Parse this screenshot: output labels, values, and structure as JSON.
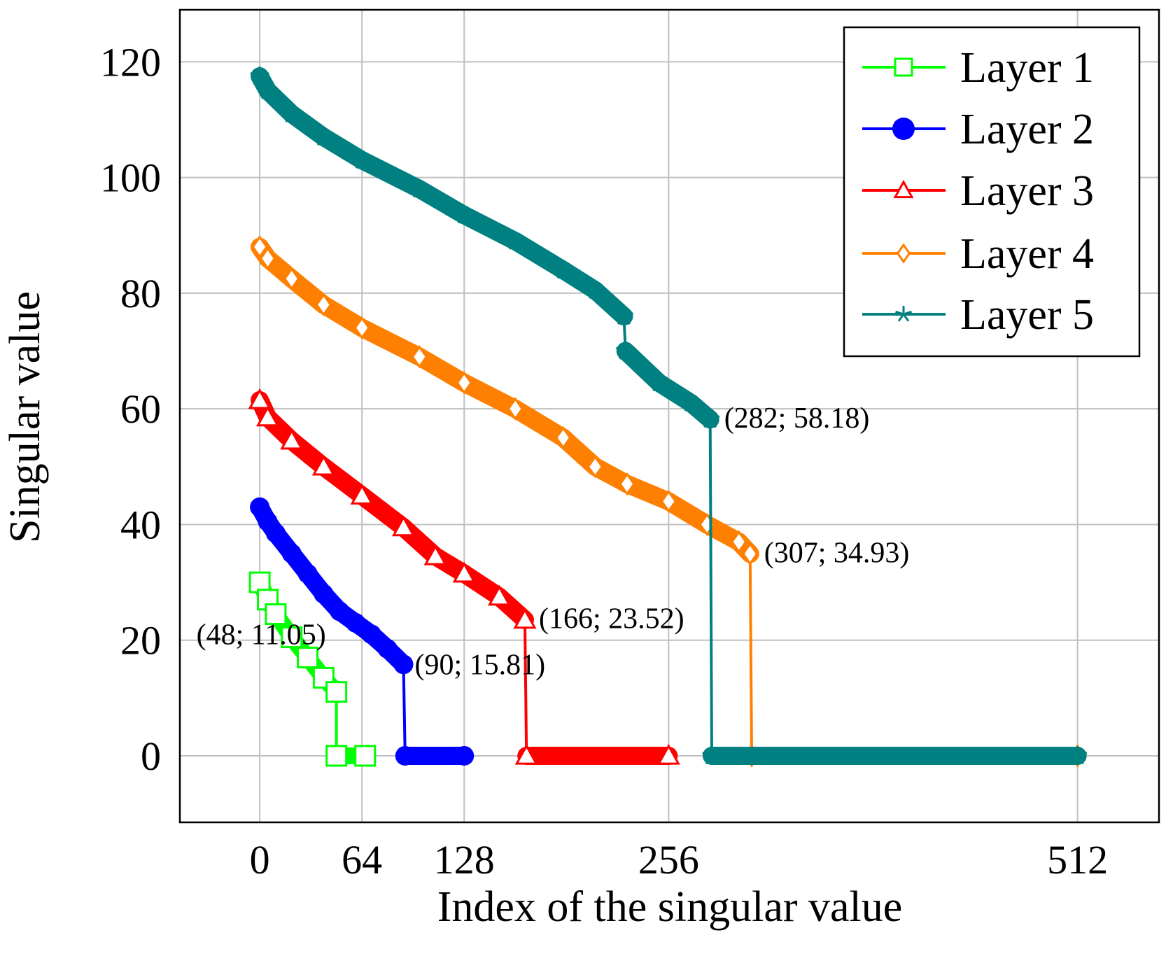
{
  "chart_data": {
    "type": "line",
    "title": "",
    "xlabel": "Index of the singular value",
    "ylabel": "Singular value",
    "xlim": [
      -50,
      563
    ],
    "ylim": [
      -11.5,
      129
    ],
    "xticks": [
      0,
      64,
      128,
      256,
      512
    ],
    "yticks": [
      0,
      20,
      40,
      60,
      80,
      100,
      120
    ],
    "grid": true,
    "legend_position": "top-right",
    "series": [
      {
        "name": "Layer 1",
        "color": "#00ff00",
        "marker": "square-open",
        "points": [
          [
            0,
            30
          ],
          [
            5,
            27
          ],
          [
            10,
            24.5
          ],
          [
            20,
            20.5
          ],
          [
            30,
            17
          ],
          [
            40,
            13.5
          ],
          [
            48,
            11.05
          ],
          [
            48,
            0
          ],
          [
            66,
            0
          ]
        ]
      },
      {
        "name": "Layer 2",
        "color": "#0000ff",
        "marker": "circle-filled",
        "points": [
          [
            0,
            43
          ],
          [
            5,
            40.5
          ],
          [
            10,
            38.5
          ],
          [
            20,
            35
          ],
          [
            30,
            31.5
          ],
          [
            40,
            28
          ],
          [
            50,
            25
          ],
          [
            60,
            23
          ],
          [
            70,
            21
          ],
          [
            80,
            18.5
          ],
          [
            90,
            15.81
          ],
          [
            91,
            0
          ],
          [
            128,
            0
          ]
        ]
      },
      {
        "name": "Layer 3",
        "color": "#ff0000",
        "marker": "triangle-open",
        "points": [
          [
            0,
            61.5
          ],
          [
            5,
            58.5
          ],
          [
            20,
            54.5
          ],
          [
            40,
            50
          ],
          [
            64,
            45
          ],
          [
            90,
            39.5
          ],
          [
            110,
            34.5
          ],
          [
            128,
            31.5
          ],
          [
            150,
            27.5
          ],
          [
            166,
            23.52
          ],
          [
            167,
            0
          ],
          [
            256,
            0
          ]
        ]
      },
      {
        "name": "Layer 4",
        "color": "#ff8000",
        "marker": "diamond-open",
        "points": [
          [
            0,
            88
          ],
          [
            5,
            86
          ],
          [
            20,
            82.5
          ],
          [
            40,
            78
          ],
          [
            64,
            74
          ],
          [
            100,
            69
          ],
          [
            128,
            64.5
          ],
          [
            160,
            60
          ],
          [
            190,
            55
          ],
          [
            210,
            50
          ],
          [
            230,
            47
          ],
          [
            256,
            44
          ],
          [
            280,
            40
          ],
          [
            300,
            37
          ],
          [
            307,
            34.93
          ],
          [
            308,
            0
          ],
          [
            512,
            0
          ]
        ]
      },
      {
        "name": "Layer 5",
        "color": "#008080",
        "marker": "star",
        "points": [
          [
            0,
            117.5
          ],
          [
            5,
            115
          ],
          [
            20,
            111
          ],
          [
            40,
            107
          ],
          [
            64,
            103
          ],
          [
            100,
            98
          ],
          [
            128,
            93.5
          ],
          [
            160,
            89
          ],
          [
            190,
            84
          ],
          [
            210,
            80.5
          ],
          [
            228,
            76
          ],
          [
            229,
            70
          ],
          [
            250,
            64.5
          ],
          [
            270,
            61
          ],
          [
            282,
            58.18
          ],
          [
            283,
            0
          ],
          [
            512,
            0
          ]
        ]
      }
    ],
    "annotations": [
      {
        "label": "(48; 11.05)",
        "x": 48,
        "y": 11.05
      },
      {
        "label": "(90; 15.81)",
        "x": 90,
        "y": 15.81
      },
      {
        "label": "(166; 23.52)",
        "x": 166,
        "y": 23.52
      },
      {
        "label": "(307; 34.93)",
        "x": 307,
        "y": 34.93
      },
      {
        "label": "(282; 58.18)",
        "x": 282,
        "y": 58.18
      }
    ]
  }
}
